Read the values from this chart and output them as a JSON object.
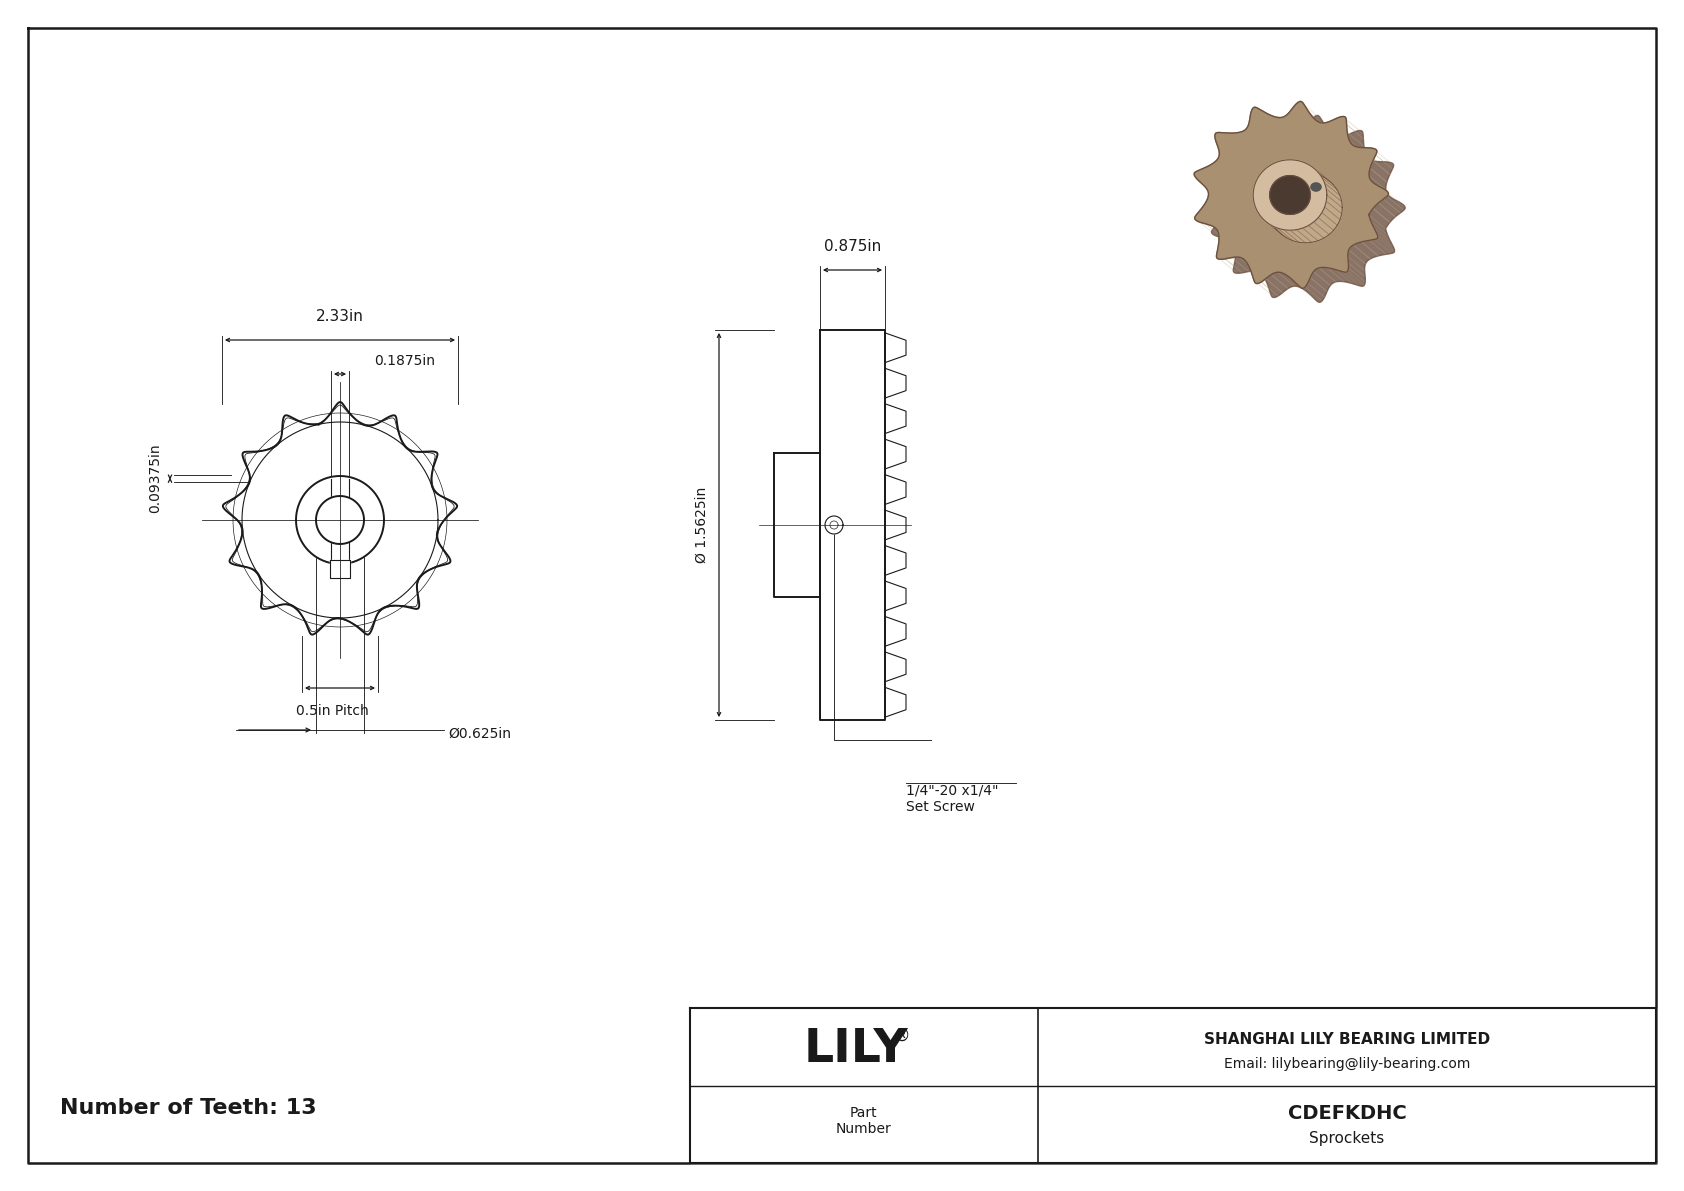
{
  "bg_color": "#ffffff",
  "line_color": "#1a1a1a",
  "num_teeth": 13,
  "part_number": "CDEFKDHC",
  "category": "Sprockets",
  "company": "SHANGHAI LILY BEARING LIMITED",
  "email": "Email: lilybearing@lily-bearing.com",
  "dim_outer": "2.33in",
  "dim_hub": "0.1875in",
  "dim_tooth_height": "0.09375in",
  "dim_pitch": "0.5in Pitch",
  "dim_bore": "Ø0.625in",
  "dim_width": "0.875in",
  "dim_od": "Ø 1.5625in",
  "dim_setscrew": "1/4\"-20 x1/4\"\nSet Screw",
  "sp3d_color": "#a89070",
  "sp3d_dark": "#6b5040",
  "sp3d_mid": "#c0a888",
  "sp3d_light": "#d4bca0"
}
